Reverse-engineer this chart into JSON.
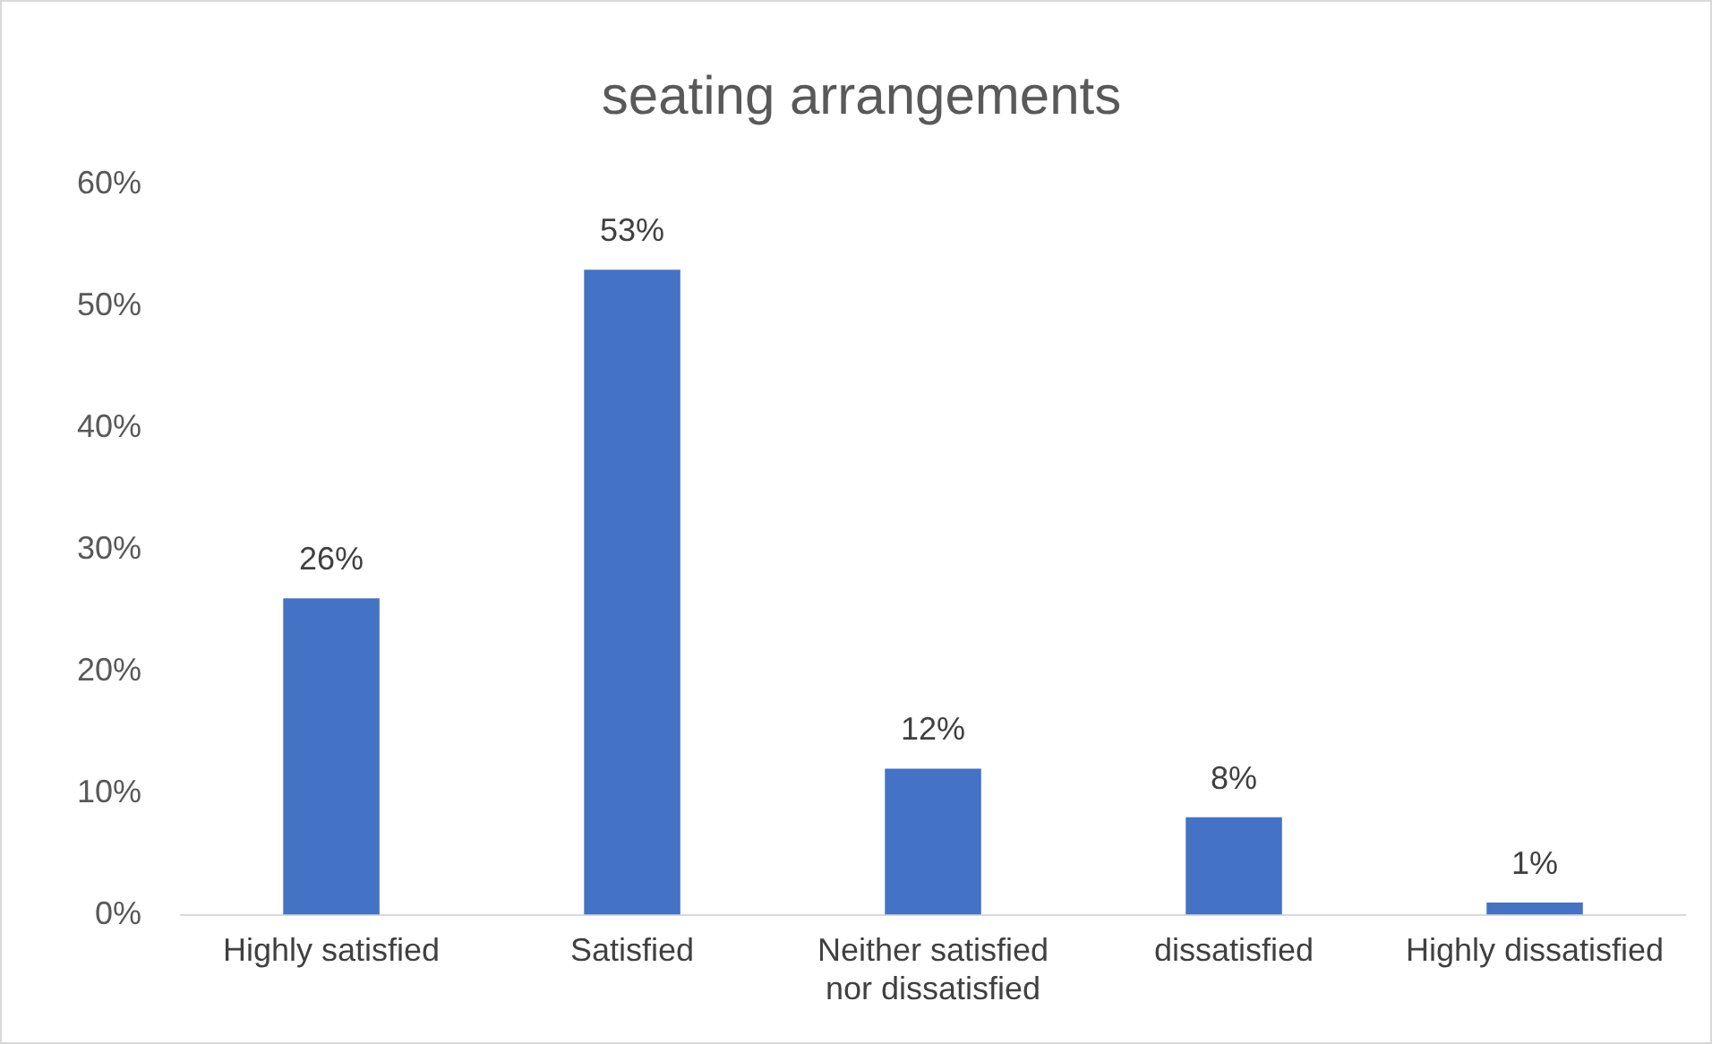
{
  "chart_data": {
    "type": "bar",
    "title": "seating arrangements",
    "categories": [
      "Highly satisfied",
      "Satisfied",
      "Neither satisfied nor dissatisfied",
      "dissatisfied",
      "Highly dissatisfied"
    ],
    "values": [
      26,
      53,
      12,
      8,
      1
    ],
    "value_labels": [
      "26%",
      "53%",
      "12%",
      "8%",
      "1%"
    ],
    "color": "#4472c4",
    "ylim": [
      0,
      60
    ],
    "yticks": [
      {
        "value": 0,
        "label": "0%"
      },
      {
        "value": 10,
        "label": "10%"
      },
      {
        "value": 20,
        "label": "20%"
      },
      {
        "value": 30,
        "label": "30%"
      },
      {
        "value": 40,
        "label": "40%"
      },
      {
        "value": 50,
        "label": "50%"
      },
      {
        "value": 60,
        "label": "60%"
      }
    ],
    "grid": false,
    "legend": false
  }
}
